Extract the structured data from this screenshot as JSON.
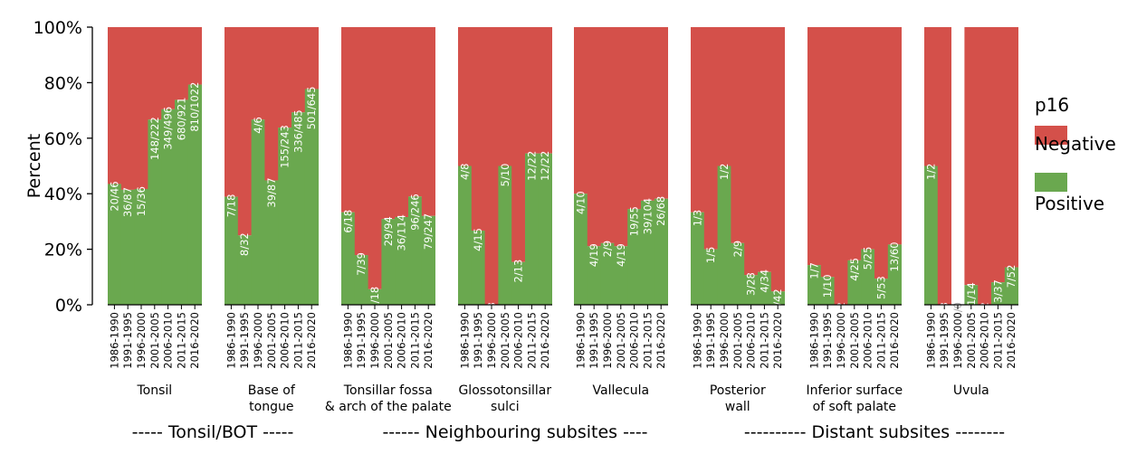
{
  "chart_data": {
    "type": "bar",
    "stacked": true,
    "ylabel": "Percent",
    "ylim": [
      0,
      100
    ],
    "y_ticks": [
      "0%",
      "20%",
      "40%",
      "60%",
      "80%",
      "100%"
    ],
    "legend": {
      "title": "p16",
      "placement": "right",
      "entries": [
        {
          "label": "Negative",
          "color": "#d4504a"
        },
        {
          "label": "Positive",
          "color": "#6aa84f"
        }
      ]
    },
    "periods": [
      "1986-1990",
      "1991-1995",
      "1996-2000",
      "2001-2005",
      "2006-2010",
      "2011-2015",
      "2016-2020"
    ],
    "groups": [
      {
        "name": "Tonsil",
        "labels": [
          "20/46",
          "36/87",
          "15/36",
          "148/222",
          "349/496",
          "680/921",
          "810/1022"
        ],
        "positive_pct": [
          43.5,
          41.4,
          41.7,
          66.7,
          70.4,
          73.8,
          79.3
        ]
      },
      {
        "name": "Base of\ntongue",
        "labels": [
          "7/18",
          "8/32",
          "4/6",
          "39/87",
          "155/243",
          "336/485",
          "501/645"
        ],
        "positive_pct": [
          38.9,
          25.0,
          66.7,
          44.8,
          63.8,
          69.3,
          77.7
        ]
      },
      {
        "name": "Tonsillar fossa\n& arch of the palate",
        "labels": [
          "6/18",
          "7/39",
          "1/18",
          "29/94",
          "36/114",
          "96/246",
          "79/247"
        ],
        "positive_pct": [
          33.3,
          17.9,
          5.6,
          30.9,
          31.6,
          39.0,
          32.0
        ]
      },
      {
        "name": "Glossotonsillar\nsulci",
        "labels": [
          "4/8",
          "4/15",
          "0/3",
          "5/10",
          "2/13",
          "12/22",
          "12/22"
        ],
        "positive_pct": [
          50.0,
          26.7,
          0.0,
          50.0,
          15.4,
          54.5,
          54.5
        ]
      },
      {
        "name": "Vallecula",
        "labels": [
          "4/10",
          "4/19",
          "2/9",
          "4/19",
          "19/55",
          "39/104",
          "26/68"
        ],
        "positive_pct": [
          40.0,
          21.1,
          22.2,
          21.1,
          34.5,
          37.5,
          38.2
        ]
      },
      {
        "name": "Posterior\nwall",
        "labels": [
          "1/3",
          "1/5",
          "1/2",
          "2/9",
          "3/28",
          "4/34",
          "2/42"
        ],
        "positive_pct": [
          33.3,
          20.0,
          50.0,
          22.2,
          10.7,
          11.8,
          4.8
        ]
      },
      {
        "name": "Inferior surface\nof soft palate",
        "labels": [
          "1/7",
          "1/10",
          "0/2",
          "4/25",
          "5/25",
          "5/53",
          "13/60"
        ],
        "positive_pct": [
          14.3,
          10.0,
          0.0,
          16.0,
          20.0,
          9.4,
          21.7
        ]
      },
      {
        "name": "Uvula",
        "labels": [
          "1/2",
          "0/3",
          "0/0",
          "1/14",
          "0/12",
          "3/37",
          "7/52"
        ],
        "positive_pct": [
          50.0,
          0.0,
          null,
          7.1,
          0.0,
          8.1,
          13.5
        ]
      }
    ],
    "footer": [
      {
        "text": "----- Tonsil/BOT -----"
      },
      {
        "text": "------ Neighbouring subsites ----"
      },
      {
        "text": "---------- Distant subsites --------"
      }
    ]
  }
}
